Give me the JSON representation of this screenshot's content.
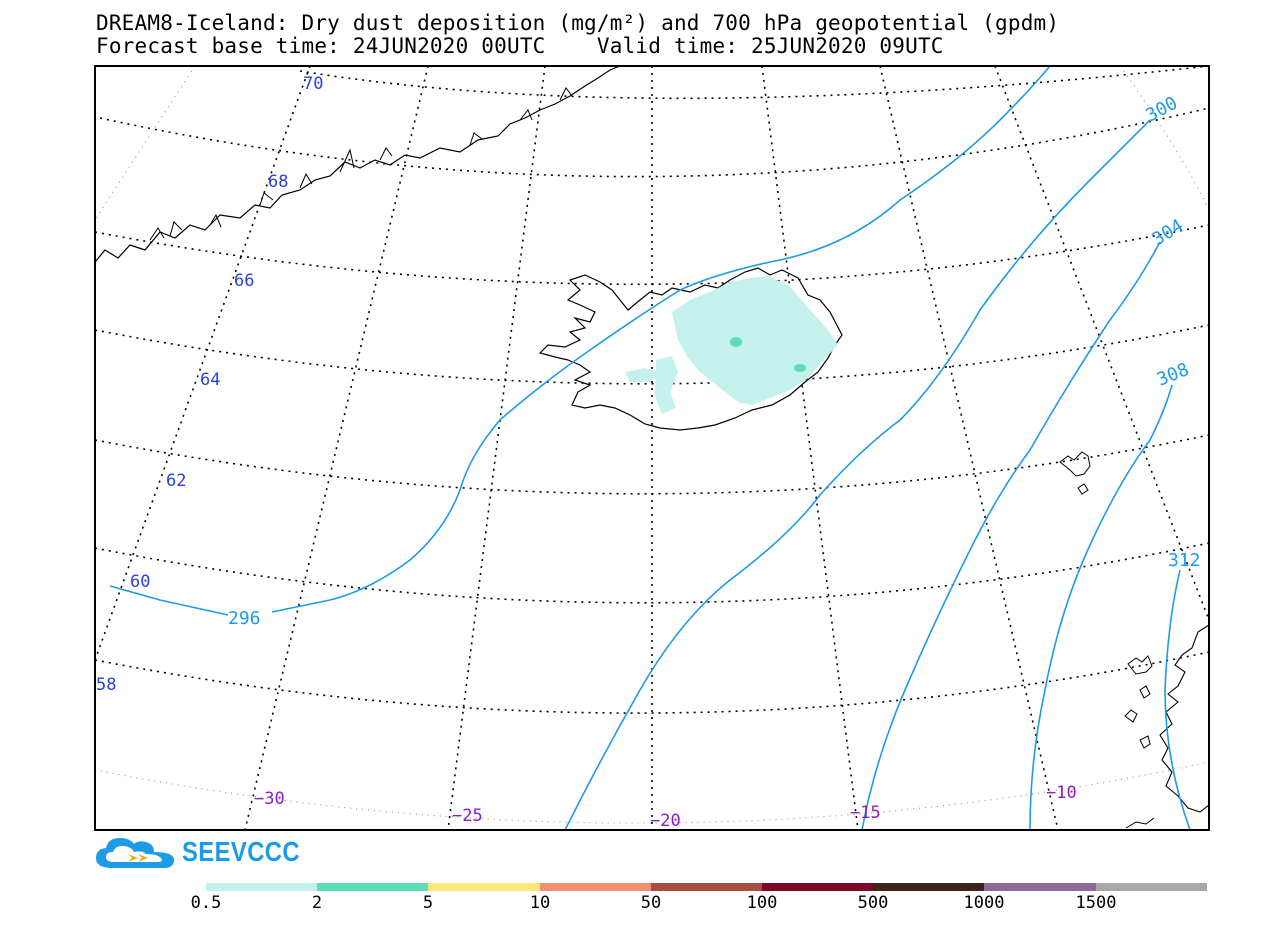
{
  "title": {
    "line1": "DREAM8-Iceland: Dry dust deposition (mg/m²) and 700 hPa geopotential (gpdm)",
    "line2": "Forecast base time: 24JUN2020 00UTC    Valid time: 25JUN2020 09UTC"
  },
  "map": {
    "frame_color": "#000000",
    "contour_color": "#1e9be6",
    "lat_label_color": "#2a3fe0",
    "lon_label_color": "#8a1fc8",
    "coast_color": "#000000",
    "lat_labels": [
      "70",
      "68",
      "66",
      "64",
      "62",
      "60",
      "58"
    ],
    "lon_labels": [
      "−30",
      "−25",
      "−20",
      "−15",
      "−10"
    ],
    "contour_labels": [
      "296",
      "300",
      "304",
      "308",
      "312"
    ],
    "deposition_light_color": "#c5f1ec",
    "deposition_mid_color": "#5cddb8"
  },
  "logo": {
    "text": "SEEVCCC",
    "icon": "cloud-arrow-icon",
    "color": "#1e9be6",
    "arrow_color": "#f0a81c"
  },
  "colorbar": {
    "colors": [
      "#c5f1ec",
      "#5cddb8",
      "#fae67a",
      "#f09070",
      "#a84e40",
      "#7a0a2a",
      "#3d2418",
      "#90689c",
      "#a8a8a8"
    ],
    "labels": [
      "0.5",
      "2",
      "5",
      "10",
      "50",
      "100",
      "500",
      "1000",
      "1500"
    ]
  }
}
